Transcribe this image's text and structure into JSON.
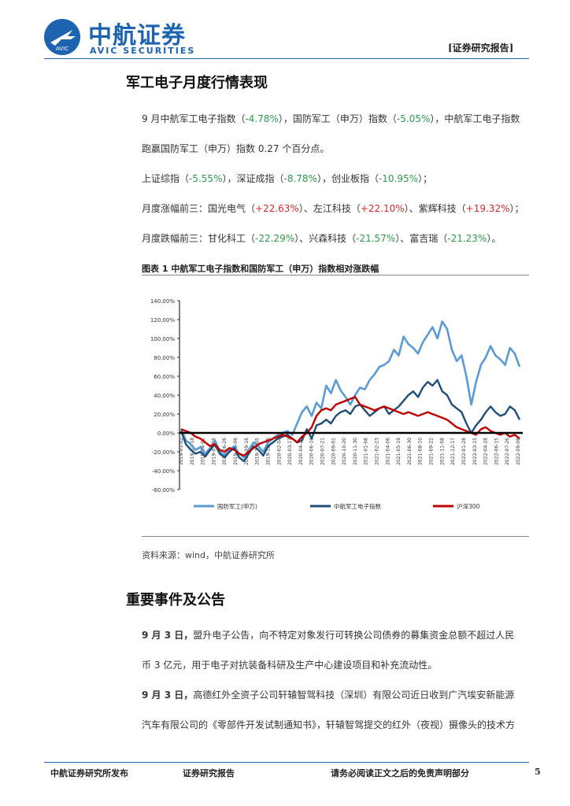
{
  "header": {
    "logo_cn": "中航证券",
    "logo_en": "AVIC SECURITIES",
    "logo_mark": "AVIC",
    "report_tag": "[证券研究报告]"
  },
  "section1": {
    "title": "军工电子月度行情表现",
    "p1_line1": {
      "a": "9 月中航军工电子指数（",
      "v1": "-4.78%",
      "b": "），国防军工（申万）指数（",
      "v2": "-5.05%",
      "c": "），中航军工电子指数"
    },
    "p1_line2": "跑赢国防军工（申万）指数 0.27 个百分点。",
    "p2": {
      "a": "上证综指（",
      "v1": "-5.55%",
      "b": "），深证成指（",
      "v2": "-8.78%",
      "c": "），创业板指（",
      "v3": "-10.95%",
      "d": "）；"
    },
    "p3": {
      "a": "月度涨幅前三：国光电气（",
      "v1": "+22.63%",
      "b": "）、左江科技（",
      "v2": "+22.10%",
      "c": "）、紫辉科技（",
      "v3": "+19.32%",
      "d": "）；"
    },
    "p4": {
      "a": "月度跌幅前三：甘化科工（",
      "v1": "-22.29%",
      "b": "）、兴森科技（",
      "v2": "-21.57%",
      "c": "）、富吉瑞（",
      "v3": "-21.23%",
      "d": "）。"
    }
  },
  "figure": {
    "title": "图表 1 中航军工电子指数和国防军工（申万）指数相对涨跌幅",
    "source": "资料来源：wind，中航证券研究所"
  },
  "chart_data": {
    "type": "line",
    "ylim": [
      -60,
      140
    ],
    "yticks": [
      "140.00%",
      "120.00%",
      "100.00%",
      "80.00%",
      "60.00%",
      "40.00%",
      "20.00%",
      "0.00%",
      "-20.00%",
      "-40.00%",
      "-60.00%"
    ],
    "grid": false,
    "legend_position": "bottom",
    "series": [
      {
        "name": "国防军工(申万)",
        "color": "#5b9bd5",
        "values": [
          4,
          -8,
          -12,
          -18,
          -15,
          -22,
          -16,
          -8,
          -20,
          -24,
          -18,
          -14,
          -22,
          -26,
          -18,
          -10,
          -14,
          -20,
          -10,
          -6,
          -2,
          0,
          2,
          -2,
          10,
          22,
          28,
          18,
          32,
          26,
          50,
          42,
          56,
          45,
          38,
          30,
          40,
          48,
          46,
          56,
          62,
          70,
          72,
          76,
          88,
          82,
          102,
          94,
          90,
          84,
          96,
          104,
          112,
          100,
          118,
          110,
          88,
          76,
          82,
          60,
          30,
          54,
          72,
          80,
          92,
          82,
          78,
          72,
          90,
          84,
          70
        ]
      },
      {
        "name": "中航军工电子指数",
        "color": "#1f4e79",
        "values": [
          2,
          -12,
          -18,
          -22,
          -20,
          -25,
          -18,
          -12,
          -22,
          -26,
          -20,
          -16,
          -26,
          -30,
          -22,
          -14,
          -18,
          -24,
          -14,
          -10,
          -6,
          -4,
          -2,
          -6,
          -10,
          -8,
          4,
          -6,
          8,
          10,
          14,
          10,
          18,
          22,
          24,
          20,
          28,
          30,
          24,
          18,
          22,
          26,
          28,
          20,
          24,
          28,
          34,
          40,
          44,
          38,
          48,
          54,
          50,
          56,
          44,
          40,
          30,
          26,
          22,
          10,
          0,
          8,
          14,
          22,
          28,
          22,
          18,
          20,
          28,
          24,
          14
        ]
      },
      {
        "name": "沪深300",
        "color": "#c00000",
        "values": [
          4,
          2,
          0,
          -4,
          -6,
          -10,
          -14,
          -12,
          -18,
          -20,
          -16,
          -18,
          -22,
          -24,
          -20,
          -16,
          -12,
          -10,
          -8,
          -6,
          -4,
          -2,
          -4,
          -6,
          -10,
          -4,
          0,
          6,
          18,
          24,
          26,
          24,
          30,
          32,
          34,
          36,
          38,
          30,
          28,
          26,
          24,
          26,
          28,
          26,
          24,
          22,
          20,
          22,
          20,
          18,
          20,
          22,
          20,
          18,
          16,
          14,
          10,
          6,
          4,
          2,
          0,
          -2,
          4,
          6,
          2,
          0,
          -2,
          0,
          -4,
          -2,
          -6
        ]
      }
    ],
    "xlabels": [
      "2019-01-02",
      "2019-02-18",
      "2019-04-01",
      "2019-05-15",
      "2019-06-26",
      "2019-08-06",
      "2019-09-16",
      "2019-11-05",
      "2019-12-16",
      "2020-02-04",
      "2020-03-17",
      "2020-04-28",
      "2020-06-10",
      "2020-07-21",
      "2020-09-01",
      "2020-10-20",
      "2020-11-30",
      "2021-01-08",
      "2021-02-23",
      "2021-04-06",
      "2021-05-19",
      "2021-06-30",
      "2021-08-10",
      "2021-09-22",
      "2021-11-08",
      "2021-12-17",
      "2022-01-28",
      "2022-03-15",
      "2022-04-28",
      "2022-06-15",
      "2022-07-26",
      "2022-09-06"
    ]
  },
  "section2": {
    "title": "重要事件及公告",
    "e1_line1": {
      "date": "9 月 3 日，",
      "text": "盟升电子公告，向不特定对象发行可转换公司债券的募集资金总额不超过人民"
    },
    "e1_line2": "币 3 亿元，用于电子对抗装备科研及生产中心建设项目和补充流动性。",
    "e2_line1": {
      "date": "9 月 3 日，",
      "text": "高德红外全资子公司轩辕智驾科技（深圳）有限公司近日收到广汽埃安新能源"
    },
    "e2_line2": "汽车有限公司的《零部件开发试制通知书》，轩辕智驾提交的红外（夜视）摄像头的技术方"
  },
  "footer": {
    "left": "中航证券研究所发布",
    "mid": "证券研究报告",
    "right": "请务必阅读正文之后的免责声明部分",
    "page": "5"
  }
}
